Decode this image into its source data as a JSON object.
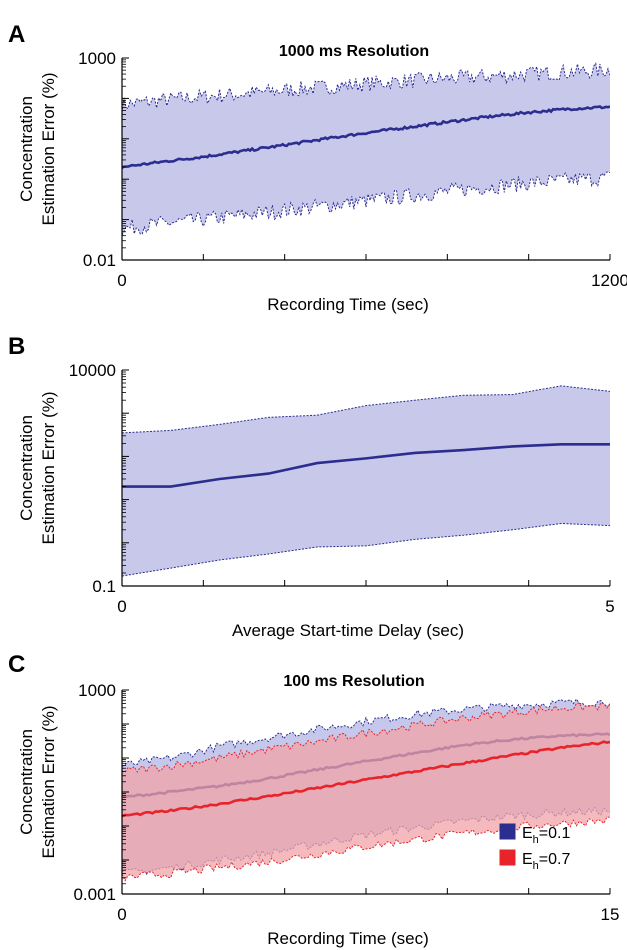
{
  "chart_data": [
    {
      "type": "area",
      "panel": "A",
      "title": "1000 ms Resolution",
      "xlabel": "Recording Time (sec)",
      "ylabel": "Concentration Estimation Error (%)",
      "ylabel_lines": [
        "Concentration",
        "Estimation Error (%)"
      ],
      "xlim": [
        0,
        1200
      ],
      "ylim": [
        0.01,
        1000
      ],
      "yscale": "log",
      "xticks": [
        0,
        1200
      ],
      "xtick_labels": [
        "0",
        "1200"
      ],
      "yticks": [
        0.01,
        1000
      ],
      "ytick_labels": [
        "0.01",
        "1000"
      ],
      "grid": false,
      "series": [
        {
          "color": "#2b2d8f",
          "fill_color": "#c8c9ea",
          "x": [
            0,
            100,
            200,
            300,
            400,
            500,
            600,
            700,
            800,
            900,
            1000,
            1100,
            1200
          ],
          "values": [
            2.0,
            2.7,
            3.6,
            5.0,
            7.0,
            10.0,
            14.0,
            19.0,
            26.0,
            35.0,
            45.0,
            55.0,
            62.0
          ],
          "upper": [
            70,
            90,
            110,
            130,
            160,
            190,
            230,
            270,
            310,
            350,
            400,
            450,
            500
          ],
          "lower": [
            0.06,
            0.08,
            0.1,
            0.13,
            0.17,
            0.22,
            0.29,
            0.38,
            0.5,
            0.65,
            0.8,
            0.95,
            1.1
          ]
        }
      ]
    },
    {
      "type": "area",
      "panel": "B",
      "title": "",
      "xlabel": "Average Start-time Delay (sec)",
      "ylabel": "Concentration Estimation Error (%)",
      "ylabel_lines": [
        "Concentration",
        "Estimation Error (%)"
      ],
      "xlim": [
        0,
        5
      ],
      "ylim": [
        0.1,
        10000
      ],
      "yscale": "log",
      "xticks": [
        0,
        5
      ],
      "xtick_labels": [
        "0",
        "5"
      ],
      "yticks": [
        0.1,
        10000
      ],
      "ytick_labels": [
        "0.1",
        "10000"
      ],
      "grid": false,
      "series": [
        {
          "color": "#2b2d8f",
          "fill_color": "#c8c9ea",
          "x": [
            0,
            0.5,
            1,
            1.5,
            2,
            2.5,
            3,
            3.5,
            4,
            4.5,
            5
          ],
          "values": [
            20,
            20,
            30,
            40,
            70,
            90,
            120,
            140,
            170,
            190,
            190
          ],
          "upper": [
            350,
            400,
            550,
            800,
            900,
            1500,
            2000,
            2600,
            2700,
            4300,
            3200
          ],
          "lower": [
            0.17,
            0.26,
            0.4,
            0.55,
            0.8,
            0.85,
            1.2,
            1.5,
            2.0,
            2.8,
            2.5
          ]
        }
      ]
    },
    {
      "type": "area",
      "panel": "C",
      "title": "100 ms Resolution",
      "xlabel": "Recording Time (sec)",
      "ylabel": "Concentration Estimation Error (%)",
      "ylabel_lines": [
        "Concentration",
        "Estimation Error (%)"
      ],
      "xlim": [
        0,
        15
      ],
      "ylim": [
        0.001,
        1000
      ],
      "yscale": "log",
      "xticks": [
        0,
        15
      ],
      "xtick_labels": [
        "0",
        "15"
      ],
      "yticks": [
        0.001,
        1000
      ],
      "ytick_labels": [
        "0.001",
        "1000"
      ],
      "grid": false,
      "legend_position": "bottom-right",
      "series": [
        {
          "name": "E_h=0.1",
          "name_main": "E",
          "name_sub": "h",
          "name_suffix": "=0.1",
          "color": "#2b2d8f",
          "fill_color": "#b3b6e4",
          "x": [
            0,
            1.5,
            3,
            4.5,
            6,
            7.5,
            9,
            10.5,
            12,
            13.5,
            15
          ],
          "values": [
            0.7,
            1.0,
            1.5,
            2.5,
            4.5,
            8.0,
            14.0,
            24.0,
            35.0,
            45.0,
            50.0
          ],
          "upper": [
            6,
            10,
            22,
            40,
            70,
            120,
            190,
            270,
            350,
            420,
            450
          ],
          "lower": [
            0.004,
            0.006,
            0.01,
            0.016,
            0.03,
            0.055,
            0.09,
            0.14,
            0.2,
            0.25,
            0.28
          ]
        },
        {
          "name": "E_h=0.7",
          "name_main": "E",
          "name_sub": "h",
          "name_suffix": "=0.7",
          "color": "#e8232a",
          "fill_color": "#f0a3a7",
          "x": [
            0,
            1.5,
            3,
            4.5,
            6,
            7.5,
            9,
            10.5,
            12,
            13.5,
            15
          ],
          "values": [
            0.2,
            0.28,
            0.45,
            0.75,
            1.3,
            2.3,
            4.0,
            7.0,
            12.0,
            20.0,
            30.0
          ],
          "upper": [
            4,
            6,
            10,
            18,
            30,
            55,
            90,
            150,
            220,
            300,
            340
          ],
          "lower": [
            0.003,
            0.004,
            0.006,
            0.009,
            0.015,
            0.025,
            0.04,
            0.06,
            0.09,
            0.12,
            0.15
          ]
        }
      ]
    }
  ]
}
